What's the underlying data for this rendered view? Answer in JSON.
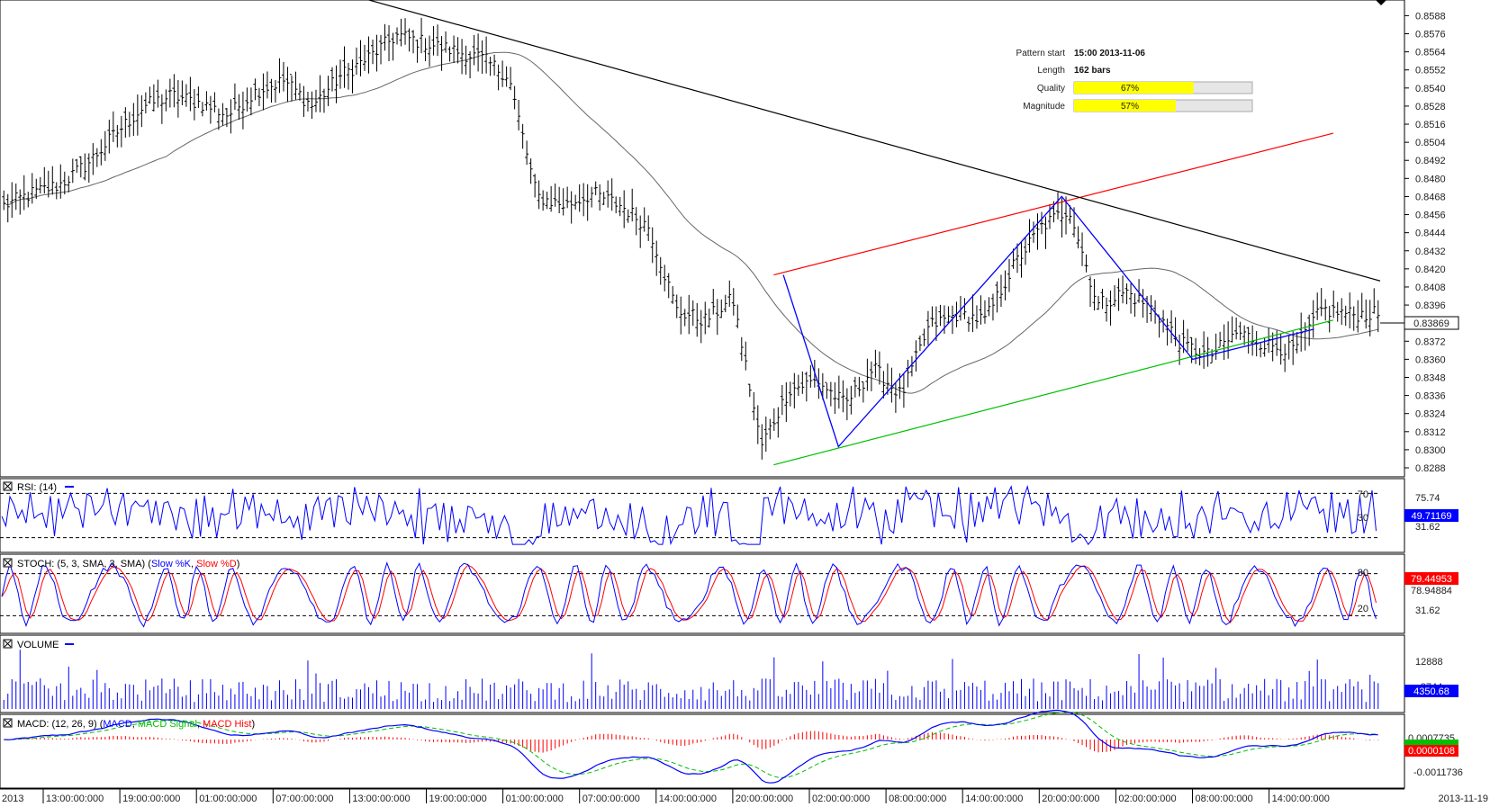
{
  "pattern_info": {
    "start_label": "Pattern start",
    "start_value": "15:00 2013-11-06",
    "length_label": "Length",
    "length_value": "162 bars",
    "quality_label": "Quality",
    "quality_value": "67%",
    "quality_fraction": 0.67,
    "magnitude_label": "Magnitude",
    "magnitude_value": "57%",
    "magnitude_fraction": 0.57,
    "bar_color": "#ffff00"
  },
  "price_panel": {
    "current_price": "0.83869",
    "y_ticks": [
      "0.8588",
      "0.8576",
      "0.8564",
      "0.8552",
      "0.8540",
      "0.8528",
      "0.8516",
      "0.8504",
      "0.8492",
      "0.8480",
      "0.8468",
      "0.8456",
      "0.8444",
      "0.8432",
      "0.8420",
      "0.8408",
      "0.8396",
      "0.8384",
      "0.8372",
      "0.8360",
      "0.8348",
      "0.8336",
      "0.8324",
      "0.8312",
      "0.8300",
      "0.8288"
    ],
    "ylim": [
      0.8288,
      0.8596
    ]
  },
  "rsi_panel": {
    "title": "RSI: (14)",
    "level_high": "70",
    "level_low": "30",
    "scale_high": "75.74",
    "scale_low": "31.62",
    "current": "49.71169",
    "color": "#0000ff"
  },
  "stoch_panel": {
    "title_prefix": "STOCH: (5, 3, SMA, 3, SMA)",
    "k_label": "Slow %K",
    "d_label": "Slow %D",
    "level_high": "80",
    "level_low": "20",
    "scale_low": "31.62",
    "current_d": "79.44953",
    "current_k": "78.94884"
  },
  "volume_panel": {
    "title": "VOLUME",
    "scale_top": "12888",
    "scale_mid": "8744",
    "current": "4350.68"
  },
  "macd_panel": {
    "title_prefix": "MACD: (12, 26, 9)",
    "macd_label": "MACD",
    "signal_label": "MACD Signal",
    "hist_label": "MACD Hist",
    "scale_top": "0.0007735",
    "scale_low": "-0.0011736",
    "current": "0.0000108"
  },
  "x_axis": {
    "left_label": "2013",
    "right_label": "2013-11-19",
    "ticks": [
      "13:00:00:000",
      "19:00:00:000",
      "01:00:00:000",
      "07:00:00:000",
      "13:00:00:000",
      "19:00:00:000",
      "01:00:00:000",
      "07:00:00:000",
      "14:00:00:000",
      "20:00:00:000",
      "02:00:00:000",
      "08:00:00:000",
      "14:00:00:000",
      "20:00:00:000",
      "02:00:00:000",
      "08:00:00:000",
      "14:00:00:000"
    ]
  },
  "colors": {
    "price_bars": "#000000",
    "upper_channel": "#ff0000",
    "lower_channel": "#00c000",
    "zigzag": "#0000ff",
    "downtrend": "#000000",
    "moving_average": "#666666"
  },
  "chart_data": {
    "type": "line",
    "title": "",
    "series": [
      {
        "values_close_approx": [
          0.8462,
          0.847,
          0.8476,
          0.849,
          0.851,
          0.8528,
          0.8535,
          0.853,
          0.8522,
          0.8538,
          0.8545,
          0.8528,
          0.8548,
          0.856,
          0.8575,
          0.857,
          0.8565,
          0.856,
          0.8548,
          0.8468,
          0.8462,
          0.847,
          0.8462,
          0.8448,
          0.8392,
          0.8386,
          0.84,
          0.8302,
          0.834,
          0.8346,
          0.833,
          0.8354,
          0.8336,
          0.8382,
          0.839,
          0.8386,
          0.8422,
          0.8448,
          0.846,
          0.8396,
          0.8405,
          0.8393,
          0.837,
          0.8362,
          0.8378,
          0.837,
          0.8366,
          0.8393,
          0.839,
          0.839
        ]
      }
    ],
    "trendlines": [
      {
        "name": "upper channel",
        "from": [
          0.8416
        ],
        "to": [
          0.851
        ]
      },
      {
        "name": "lower channel",
        "from": [
          0.829
        ],
        "to": [
          0.8386
        ]
      },
      {
        "name": "downtrend resistance",
        "from": [
          0.86
        ],
        "to": [
          0.8412
        ]
      }
    ],
    "zigzag": [
      0.8416,
      0.8302,
      0.8468,
      0.836,
      0.838
    ],
    "panels": [
      "price",
      "RSI",
      "STOCH",
      "VOLUME",
      "MACD"
    ]
  }
}
